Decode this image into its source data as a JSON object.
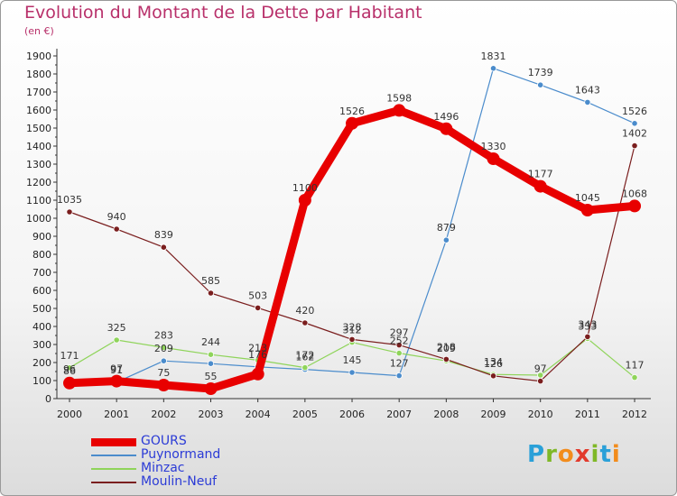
{
  "title": "Evolution du Montant de la Dette par Habitant",
  "unit_label": "(en €)",
  "logo": {
    "letters": [
      "P",
      "r",
      "o",
      "x",
      "i",
      "t",
      "i"
    ],
    "colors": [
      "#2aa0d8",
      "#7fb827",
      "#f28c1c",
      "#e23a2c",
      "#7fb827",
      "#2aa0d8",
      "#f28c1c"
    ]
  },
  "chart_data": {
    "type": "line",
    "x": [
      "2000",
      "2001",
      "2002",
      "2003",
      "2004",
      "2005",
      "2006",
      "2007",
      "2008",
      "2009",
      "2010",
      "2011",
      "2012"
    ],
    "ylim": [
      0,
      1900
    ],
    "yticks": [
      "0",
      "100",
      "200",
      "300",
      "400",
      "500",
      "600",
      "700",
      "800",
      "900",
      "1000",
      "1100",
      "1200",
      "1300",
      "1400",
      "1500",
      "1600",
      "1700",
      "1800",
      "1900"
    ],
    "grid": false,
    "legend_position": "bottom-left",
    "series": [
      {
        "name": "GOURS",
        "color": "#e80000",
        "values": [
          86,
          97,
          75,
          55,
          136,
          1100,
          1526,
          1598,
          1496,
          1330,
          1177,
          1045,
          1068
        ],
        "labels": [
          "86",
          "97",
          "75",
          "55",
          "",
          "1100",
          "1526",
          "1598",
          "1496",
          "1330",
          "1177",
          "1045",
          "1068"
        ]
      },
      {
        "name": "Puynormand",
        "color": "#4b8ccc",
        "values": [
          96,
          91,
          209,
          194,
          176,
          162,
          145,
          127,
          879,
          1831,
          1739,
          1643,
          1526
        ],
        "labels": [
          "96",
          "91",
          "209",
          "",
          "176",
          "162",
          "145",
          "127",
          "879",
          "1831",
          "1739",
          "1643",
          "1526"
        ]
      },
      {
        "name": "Minzac",
        "color": "#8fd45a",
        "values": [
          171,
          325,
          283,
          244,
          213,
          172,
          312,
          252,
          209,
          134,
          130,
          333,
          117
        ],
        "labels": [
          "171",
          "325",
          "283",
          "244",
          "213",
          "172",
          "312",
          "252",
          "209",
          "134",
          "",
          "333",
          "117"
        ]
      },
      {
        "name": "Moulin-Neuf",
        "color": "#7a1e1e",
        "values": [
          1035,
          940,
          839,
          585,
          503,
          420,
          328,
          297,
          218,
          126,
          97,
          343,
          1402
        ],
        "labels": [
          "1035",
          "940",
          "839",
          "585",
          "503",
          "420",
          "328",
          "297",
          "218",
          "126",
          "97",
          "343",
          "1402"
        ]
      }
    ]
  }
}
